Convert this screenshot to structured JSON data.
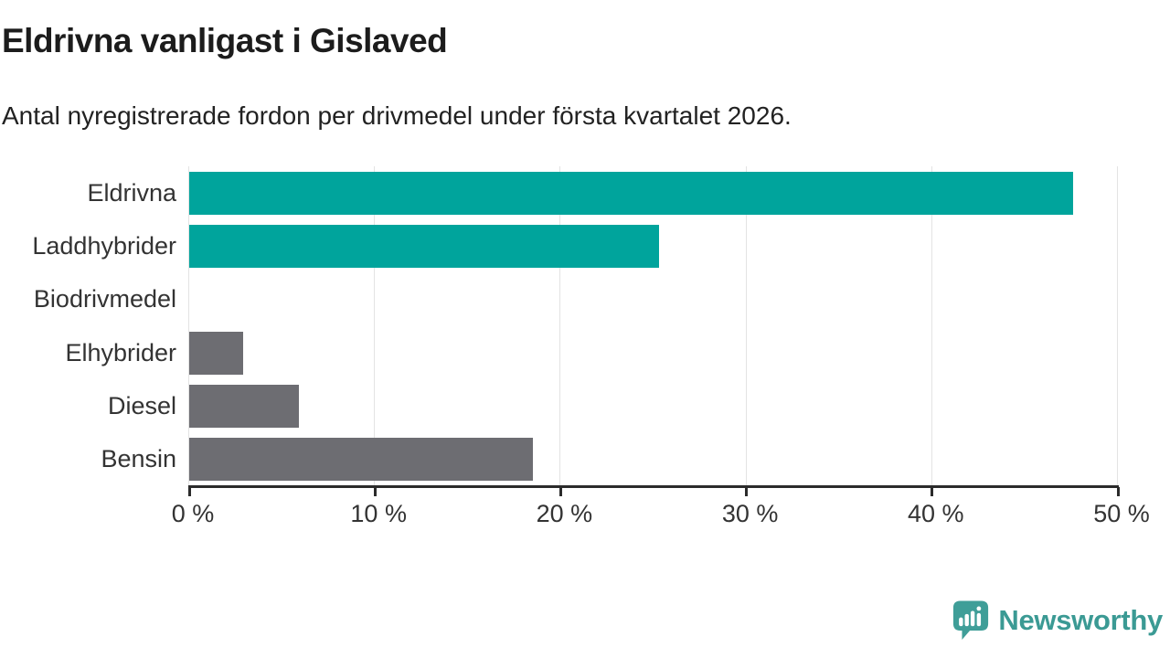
{
  "header": {
    "title": "Eldrivna vanligast i Gislaved",
    "subtitle": "Antal nyregistrerade fordon per drivmedel under första kvartalet 2026."
  },
  "chart_data": {
    "type": "bar",
    "orientation": "horizontal",
    "title": "Eldrivna vanligast i Gislaved",
    "subtitle": "Antal nyregistrerade fordon per drivmedel under första kvartalet 2026.",
    "categories": [
      "Eldrivna",
      "Laddhybrider",
      "Biodrivmedel",
      "Elhybrider",
      "Diesel",
      "Bensin"
    ],
    "values": [
      47.6,
      25.3,
      0,
      2.9,
      5.9,
      18.5
    ],
    "unit": "%",
    "xlim": [
      0,
      50
    ],
    "x_tick_values": [
      0,
      10,
      20,
      30,
      40,
      50
    ],
    "x_tick_labels": [
      "0 %",
      "10 %",
      "20 %",
      "30 %",
      "40 %",
      "50 %"
    ],
    "grid": "vertical-light",
    "legend": "none",
    "bar_colors": [
      "#00a49c",
      "#00a49c",
      "#6d6d72",
      "#6d6d72",
      "#6d6d72",
      "#6d6d72"
    ],
    "highlight_color": "#00a49c",
    "default_color": "#6d6d72"
  },
  "branding": {
    "logo_label": "Newsworthy",
    "logo_icon": "newsworthy-chart-bubble-icon",
    "logo_bubble_color": "#3f9e98",
    "logo_text_color": "#3b9a94"
  }
}
